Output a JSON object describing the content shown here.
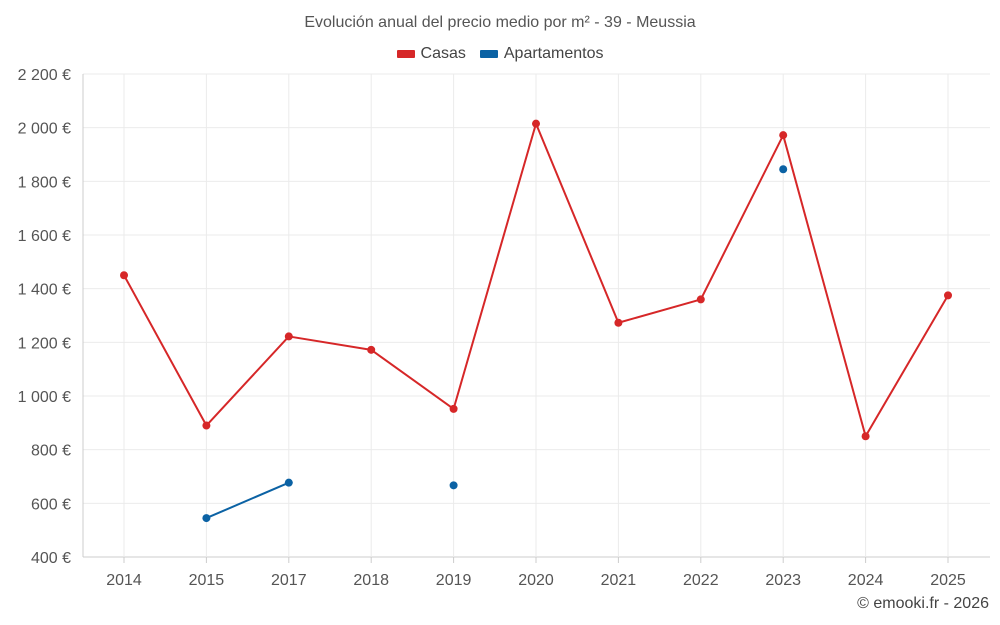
{
  "chart_data": {
    "type": "line",
    "title": "Evolución anual del precio medio por m² - 39 - Meussia",
    "categories": [
      "2014",
      "2015",
      "2017",
      "2018",
      "2019",
      "2020",
      "2021",
      "2022",
      "2023",
      "2024",
      "2025"
    ],
    "series": [
      {
        "name": "Casas",
        "color": "#d62728",
        "values": [
          1450,
          890,
          1222,
          1172,
          952,
          2015,
          1273,
          1360,
          1972,
          850,
          1375
        ]
      },
      {
        "name": "Apartamentos",
        "color": "#0b62a4",
        "values": [
          null,
          545,
          677,
          null,
          667,
          null,
          null,
          null,
          1845,
          null,
          null
        ]
      }
    ],
    "ylim": [
      400,
      2200
    ],
    "yticks": [
      400,
      600,
      800,
      1000,
      1200,
      1400,
      1600,
      1800,
      2000,
      2200
    ],
    "ytick_labels": [
      "400 €",
      "600 €",
      "800 €",
      "1 000 €",
      "1 200 €",
      "1 400 €",
      "1 600 €",
      "1 800 €",
      "2 000 €",
      "2 200 €"
    ],
    "xlabel": "",
    "ylabel": "",
    "grid": true,
    "legend_position": "top-center"
  },
  "copyright": "© emooki.fr - 2026"
}
